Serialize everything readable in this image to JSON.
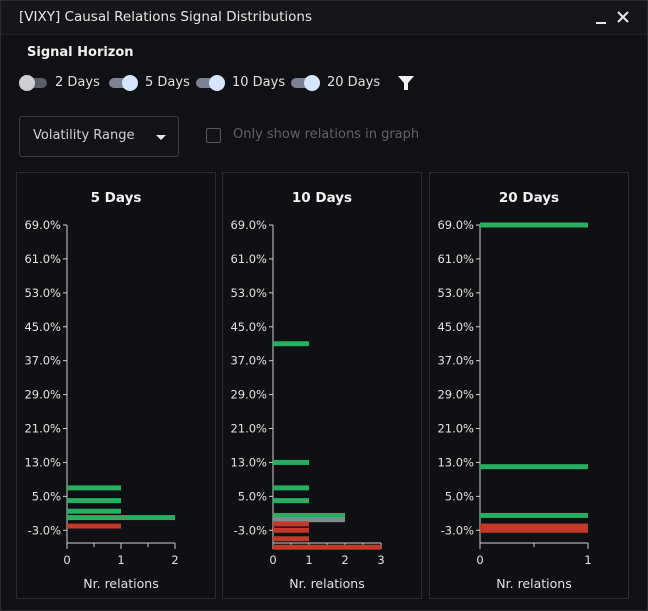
{
  "window": {
    "title": "[VIXY] Causal Relations Signal Distributions",
    "minimize_icon": "minimize-icon",
    "close_icon": "close-icon"
  },
  "controls": {
    "signal_horizon_label": "Signal Horizon",
    "toggles": [
      {
        "label": "2 Days",
        "on": false
      },
      {
        "label": "5 Days",
        "on": true
      },
      {
        "label": "10 Days",
        "on": true
      },
      {
        "label": "20 Days",
        "on": true
      }
    ],
    "filter_icon": "filter-icon",
    "range_select": {
      "value": "Volatility Range"
    },
    "only_graph_checkbox": {
      "label": "Only show relations in graph",
      "checked": false
    }
  },
  "colors": {
    "positive": "#27ae60",
    "negative": "#c0392b",
    "neutral": "#7f8c8d"
  },
  "chart_data": [
    {
      "type": "bar",
      "title": "5 Days",
      "xlabel": "Nr. relations",
      "ylabel": "",
      "y_ticks": [
        "69.0%",
        "61.0%",
        "53.0%",
        "45.0%",
        "37.0%",
        "29.0%",
        "21.0%",
        "13.0%",
        "5.0%",
        "-3.0%"
      ],
      "x_ticks": [
        "0",
        "1",
        "2"
      ],
      "xlim": [
        0,
        2
      ],
      "ylim": [
        -6,
        69
      ],
      "bars": [
        {
          "y": 7,
          "value": 1,
          "sign": "positive"
        },
        {
          "y": 4,
          "value": 1,
          "sign": "positive"
        },
        {
          "y": 1.5,
          "value": 1,
          "sign": "positive"
        },
        {
          "y": 0,
          "value": 2,
          "sign": "positive"
        },
        {
          "y": -2,
          "value": 1,
          "sign": "negative"
        }
      ]
    },
    {
      "type": "bar",
      "title": "10 Days",
      "xlabel": "Nr. relations",
      "ylabel": "",
      "y_ticks": [
        "69.0%",
        "61.0%",
        "53.0%",
        "45.0%",
        "37.0%",
        "29.0%",
        "21.0%",
        "13.0%",
        "5.0%",
        "-3.0%"
      ],
      "x_ticks": [
        "0",
        "1",
        "2",
        "3"
      ],
      "xlim": [
        0,
        3
      ],
      "ylim": [
        -6,
        69
      ],
      "bars": [
        {
          "y": 41,
          "value": 1,
          "sign": "positive"
        },
        {
          "y": 13,
          "value": 1,
          "sign": "positive"
        },
        {
          "y": 7,
          "value": 1,
          "sign": "positive"
        },
        {
          "y": 4,
          "value": 1,
          "sign": "positive"
        },
        {
          "y": 0.5,
          "value": 2,
          "sign": "positive"
        },
        {
          "y": -0.5,
          "value": 2,
          "sign": "neutral"
        },
        {
          "y": -1.5,
          "value": 1,
          "sign": "negative"
        },
        {
          "y": -3,
          "value": 1,
          "sign": "negative"
        },
        {
          "y": -5,
          "value": 1,
          "sign": "negative"
        },
        {
          "y": -7,
          "value": 3,
          "sign": "negative"
        }
      ]
    },
    {
      "type": "bar",
      "title": "20 Days",
      "xlabel": "Nr. relations",
      "ylabel": "",
      "y_ticks": [
        "69.0%",
        "61.0%",
        "53.0%",
        "45.0%",
        "37.0%",
        "29.0%",
        "21.0%",
        "13.0%",
        "5.0%",
        "-3.0%"
      ],
      "x_ticks": [
        "0",
        "1"
      ],
      "xlim": [
        0,
        1
      ],
      "ylim": [
        -6,
        69
      ],
      "bars": [
        {
          "y": 69,
          "value": 1,
          "sign": "positive"
        },
        {
          "y": 12,
          "value": 1,
          "sign": "positive"
        },
        {
          "y": 0.5,
          "value": 1,
          "sign": "positive"
        },
        {
          "y": -2,
          "value": 1,
          "sign": "negative"
        },
        {
          "y": -3,
          "value": 1,
          "sign": "negative"
        }
      ]
    }
  ]
}
